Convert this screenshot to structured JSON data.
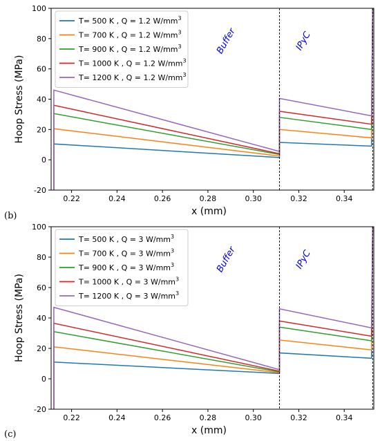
{
  "chart_data": [
    {
      "type": "line",
      "panel_label": "(b)",
      "xlabel": "x (mm)",
      "ylabel": "Hoop Stress (MPa)",
      "xlim": [
        0.211,
        0.353
      ],
      "ylim": [
        -20,
        100
      ],
      "xticks": [
        0.22,
        0.24,
        0.26,
        0.28,
        0.3,
        0.32,
        0.34
      ],
      "yticks": [
        -20,
        0,
        20,
        40,
        60,
        80,
        100
      ],
      "grid": false,
      "legend_position": "upper-left",
      "annotations": [
        {
          "text": "Buffer",
          "x": 0.289,
          "y": 93
        },
        {
          "text": "IPyC",
          "x": 0.323,
          "y": 93
        }
      ],
      "boundaries": [
        0.3115,
        0.3525
      ],
      "series": [
        {
          "name": "T= 500 K , Q = 1.2 W/mm",
          "sup": "3",
          "color": "#1f77b4",
          "segments": [
            {
              "x": [
                0.2122,
                0.3115
              ],
              "y": [
                10.5,
                1.5
              ]
            },
            {
              "x": [
                0.3115,
                0.352
              ],
              "y": [
                11.5,
                9.0
              ]
            }
          ]
        },
        {
          "name": "T= 700 K , Q = 1.2 W/mm",
          "sup": "3",
          "color": "#ff7f0e",
          "segments": [
            {
              "x": [
                0.2122,
                0.3115
              ],
              "y": [
                20.5,
                2.5
              ]
            },
            {
              "x": [
                0.3115,
                0.352
              ],
              "y": [
                20.0,
                14.5
              ]
            }
          ]
        },
        {
          "name": "T= 900 K , Q = 1.2 W/mm",
          "sup": "3",
          "color": "#2ca02c",
          "segments": [
            {
              "x": [
                0.2122,
                0.3115
              ],
              "y": [
                30.5,
                3.5
              ]
            },
            {
              "x": [
                0.3115,
                0.352
              ],
              "y": [
                28.0,
                20.0
              ]
            }
          ]
        },
        {
          "name": "T= 1000 K , Q = 1.2 W/mm",
          "sup": "3",
          "color": "#d62728",
          "segments": [
            {
              "x": [
                0.2122,
                0.3115
              ],
              "y": [
                36.0,
                4.0
              ]
            },
            {
              "x": [
                0.3115,
                0.352
              ],
              "y": [
                32.0,
                23.5
              ]
            }
          ]
        },
        {
          "name": "T= 1200 K , Q = 1.2 W/mm",
          "sup": "3",
          "color": "#9467bd",
          "segments": [
            {
              "x": [
                0.2122,
                0.3115
              ],
              "y": [
                46.0,
                5.5
              ]
            },
            {
              "x": [
                0.3115,
                0.352
              ],
              "y": [
                40.5,
                29.0
              ]
            }
          ]
        }
      ]
    },
    {
      "type": "line",
      "panel_label": "(c)",
      "xlabel": "x (mm)",
      "ylabel": "Hoop Stress (MPa)",
      "xlim": [
        0.211,
        0.353
      ],
      "ylim": [
        -20,
        100
      ],
      "xticks": [
        0.22,
        0.24,
        0.26,
        0.28,
        0.3,
        0.32,
        0.34
      ],
      "yticks": [
        -20,
        0,
        20,
        40,
        60,
        80,
        100
      ],
      "grid": false,
      "legend_position": "upper-left",
      "annotations": [
        {
          "text": "Buffer",
          "x": 0.289,
          "y": 93
        },
        {
          "text": "IPyC",
          "x": 0.323,
          "y": 93
        }
      ],
      "boundaries": [
        0.3115,
        0.3525
      ],
      "series": [
        {
          "name": "T= 500 K , Q = 3 W/mm",
          "sup": "3",
          "color": "#1f77b4",
          "segments": [
            {
              "x": [
                0.2122,
                0.3115
              ],
              "y": [
                11.0,
                3.5
              ]
            },
            {
              "x": [
                0.3115,
                0.352
              ],
              "y": [
                17.0,
                13.5
              ]
            }
          ]
        },
        {
          "name": "T= 700 K , Q = 3 W/mm",
          "sup": "3",
          "color": "#ff7f0e",
          "segments": [
            {
              "x": [
                0.2122,
                0.3115
              ],
              "y": [
                21.0,
                4.0
              ]
            },
            {
              "x": [
                0.3115,
                0.352
              ],
              "y": [
                25.5,
                19.0
              ]
            }
          ]
        },
        {
          "name": "T= 900 K , Q = 3 W/mm",
          "sup": "3",
          "color": "#2ca02c",
          "segments": [
            {
              "x": [
                0.2122,
                0.3115
              ],
              "y": [
                31.0,
                4.5
              ]
            },
            {
              "x": [
                0.3115,
                0.352
              ],
              "y": [
                34.0,
                25.0
              ]
            }
          ]
        },
        {
          "name": "T= 1000 K , Q = 3 W/mm",
          "sup": "3",
          "color": "#d62728",
          "segments": [
            {
              "x": [
                0.2122,
                0.3115
              ],
              "y": [
                36.5,
                5.0
              ]
            },
            {
              "x": [
                0.3115,
                0.352
              ],
              "y": [
                38.0,
                28.0
              ]
            }
          ]
        },
        {
          "name": "T= 1200 K , Q = 3 W/mm",
          "sup": "3",
          "color": "#9467bd",
          "segments": [
            {
              "x": [
                0.2122,
                0.3115
              ],
              "y": [
                47.0,
                6.0
              ]
            },
            {
              "x": [
                0.3115,
                0.352
              ],
              "y": [
                46.0,
                33.5
              ]
            }
          ]
        }
      ]
    }
  ]
}
